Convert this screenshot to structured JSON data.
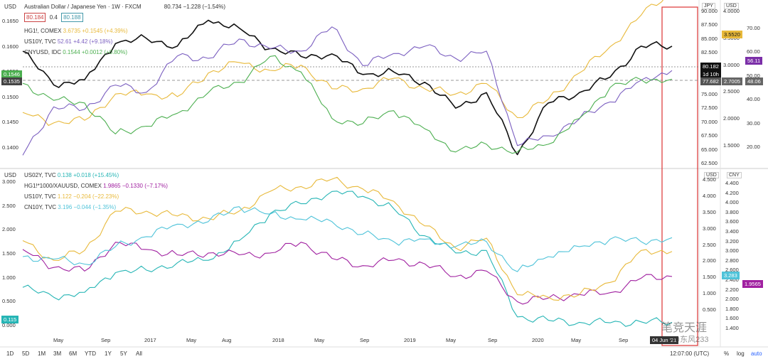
{
  "top_panel": {
    "currency_label": "USD",
    "title": "Australian Dollar / Japanese Yen · 1W · FXCM",
    "price": "80.734",
    "change": "−1.228 (−1.54%)",
    "bid": "80.184",
    "spread": "0.4",
    "ask": "80.188",
    "legend": [
      {
        "name": "HG1!, COMEX",
        "value": "3.6735",
        "change": "+0.1545 (+4.39%)",
        "color": "#e8b93a"
      },
      {
        "name": "US10Y, TVC",
        "value": "52.61",
        "change": "+4.42 (+9.18%)",
        "color": "#7b5fc0"
      },
      {
        "name": "CNYUSD, IDC",
        "value": "0.1544",
        "change": "+0.0012 (+0.80%)",
        "color": "#4caf50"
      }
    ],
    "axis_tags": {
      "jpy": "JPY",
      "usd": "USD"
    },
    "left_ticks": [
      "0.1650",
      "0.1600",
      "0.1550",
      "0.1500",
      "0.1450",
      "0.1400"
    ],
    "right_jpy_ticks": [
      "90.000",
      "87.500",
      "85.000",
      "82.500",
      "80.000",
      "77.500",
      "75.000",
      "72.500",
      "70.000",
      "67.500",
      "65.000",
      "62.500"
    ],
    "right_usd_ticks": [
      "4.0000",
      "3.5000",
      "3.0000",
      "2.5000",
      "2.0000",
      "1.5000"
    ],
    "right_usd2_ticks": [
      "70.00",
      "60.00",
      "50.00",
      "40.00",
      "30.00",
      "20.00"
    ],
    "price_labels": {
      "left_green": "0.1546",
      "left_dark": "0.1535",
      "aud_jpy": "80.182",
      "countdown": "1d 10h",
      "jpy_line": "77.682",
      "hg_copper": "3.5520",
      "hg_line": "2.7005",
      "us10y_purple": "56.11",
      "us10y_line": "48.06"
    }
  },
  "bottom_panel": {
    "currency_label": "USD",
    "legend": [
      {
        "name": "US02Y, TVC",
        "value": "0.138",
        "change": "+0.018 (+15.45%)",
        "color": "#26b5b5"
      },
      {
        "name": "HG1!*1000/XAUUSD, COMEX",
        "value": "1.9865",
        "change": "−0.1330 (−7.17%)",
        "color": "#a020a0"
      },
      {
        "name": "US10Y, TVC",
        "value": "1.122",
        "change": "−0.204 (−22.23%)",
        "color": "#e8b93a"
      },
      {
        "name": "CN10Y, TVC",
        "value": "3.196",
        "change": "−0.044 (−1.35%)",
        "color": "#4fc3d9"
      }
    ],
    "axis_tags": {
      "usd": "USD",
      "cny": "CNY"
    },
    "left_ticks": [
      "3.000",
      "2.500",
      "2.000",
      "1.500",
      "1.000",
      "0.500",
      "0.000"
    ],
    "right_usd_ticks": [
      "4.500",
      "4.000",
      "3.500",
      "3.000",
      "2.500",
      "2.000",
      "1.500",
      "1.000",
      "0.500"
    ],
    "right_cny_ticks": [
      "4.400",
      "4.200",
      "4.000",
      "3.800",
      "3.600",
      "3.400",
      "3.200",
      "3.000",
      "2.800",
      "2.600",
      "2.400",
      "2.200",
      "2.000",
      "1.800",
      "1.600",
      "1.400"
    ],
    "price_labels": {
      "left_teal": "0.115",
      "cn10y": "3.283",
      "ratio": "1.9565"
    }
  },
  "x_axis": {
    "labels": [
      "May",
      "Sep",
      "2017",
      "May",
      "Aug",
      "2018",
      "May",
      "Sep",
      "2019",
      "May",
      "Sep",
      "2020",
      "May",
      "Sep"
    ],
    "highlight_date": "04 Jun '21",
    "clock": "12:07:00 (UTC)",
    "pct": "%",
    "log": "log",
    "auto": "auto"
  },
  "toolbar": {
    "ranges": [
      "1D",
      "5D",
      "1M",
      "3M",
      "6M",
      "YTD",
      "1Y",
      "5Y",
      "All"
    ]
  },
  "watermark": {
    "main": "笔竞天涯",
    "sub": "@东风233"
  },
  "chart_data": [
    {
      "type": "line",
      "title": "Australian Dollar / Japanese Yen · 1W · FXCM (with HG1!, US10Y, CNYUSD overlays)",
      "x": [
        "2016-04",
        "2016-06",
        "2016-09",
        "2016-12",
        "2017-03",
        "2017-06",
        "2017-09",
        "2017-12",
        "2018-03",
        "2018-06",
        "2018-09",
        "2018-12",
        "2019-03",
        "2019-06",
        "2019-09",
        "2019-12",
        "2020-03",
        "2020-06",
        "2020-09",
        "2020-12",
        "2021-03",
        "2021-06"
      ],
      "series": [
        {
          "name": "AUDJPY",
          "color": "#111111",
          "axis": "jpy",
          "values": [
            83.5,
            77.0,
            78.0,
            85.0,
            86.0,
            84.5,
            89.5,
            88.0,
            84.0,
            82.5,
            83.0,
            79.0,
            79.5,
            77.5,
            72.5,
            75.5,
            63.5,
            73.5,
            75.5,
            78.5,
            84.5,
            84.5
          ]
        },
        {
          "name": "HG1!",
          "color": "#e8b93a",
          "axis": "usd",
          "values": [
            2.25,
            2.05,
            2.1,
            2.6,
            2.6,
            2.55,
            3.0,
            3.2,
            3.05,
            3.15,
            2.7,
            2.7,
            2.9,
            2.7,
            2.6,
            2.8,
            2.15,
            2.5,
            3.0,
            3.5,
            4.1,
            4.55
          ]
        },
        {
          "name": "US10Y",
          "color": "#7b5fc0",
          "axis": "usd2",
          "values": [
            18.0,
            38.0,
            37.0,
            47.0,
            44.0,
            59.0,
            58.0,
            66.0,
            62.0,
            61.0,
            71.0,
            55.0,
            60.0,
            63.0,
            58.0,
            61.0,
            22.0,
            26.0,
            33.0,
            40.0,
            49.0,
            53.0
          ]
        },
        {
          "name": "CNYUSD",
          "color": "#4caf50",
          "axis": "left",
          "values": [
            0.1538,
            0.1505,
            0.15,
            0.144,
            0.1455,
            0.148,
            0.152,
            0.154,
            0.159,
            0.156,
            0.147,
            0.146,
            0.1485,
            0.145,
            0.1405,
            0.142,
            0.1405,
            0.142,
            0.147,
            0.153,
            0.1545,
            0.1546
          ]
        }
      ],
      "left_axis_range": [
        0.138,
        0.168
      ],
      "jpy_axis_range": [
        61.5,
        91.5
      ],
      "usd_axis_range": [
        1.25,
        4.2
      ],
      "usd2_axis_range": [
        14,
        78
      ]
    },
    {
      "type": "line",
      "title": "US02Y, HG1!*1000/XAUUSD, US10Y, CN10Y",
      "x": [
        "2016-04",
        "2016-06",
        "2016-09",
        "2016-12",
        "2017-03",
        "2017-06",
        "2017-09",
        "2017-12",
        "2018-03",
        "2018-06",
        "2018-09",
        "2018-12",
        "2019-03",
        "2019-06",
        "2019-09",
        "2019-12",
        "2020-03",
        "2020-06",
        "2020-09",
        "2020-12",
        "2021-03",
        "2021-06"
      ],
      "series": [
        {
          "name": "US02Y",
          "color": "#26b5b5",
          "axis": "left",
          "values": [
            0.85,
            0.65,
            0.75,
            1.15,
            1.2,
            1.35,
            1.4,
            1.8,
            2.35,
            2.55,
            2.8,
            2.7,
            2.45,
            1.9,
            1.55,
            1.6,
            0.25,
            0.18,
            0.14,
            0.13,
            0.15,
            0.14
          ]
        },
        {
          "name": "HG1!*1000/XAUUSD",
          "color": "#a020a0",
          "axis": "usd",
          "values": [
            2.7,
            2.2,
            2.1,
            2.9,
            2.7,
            2.55,
            2.6,
            2.55,
            2.6,
            2.9,
            2.45,
            2.25,
            2.4,
            2.3,
            1.95,
            2.1,
            1.25,
            1.35,
            1.45,
            1.5,
            1.9,
            1.95
          ]
        },
        {
          "name": "US10Y",
          "color": "#e8b93a",
          "axis": "left",
          "values": [
            1.8,
            1.4,
            1.6,
            2.4,
            2.4,
            2.3,
            2.25,
            2.4,
            2.8,
            2.9,
            3.05,
            2.85,
            2.6,
            2.1,
            1.65,
            1.85,
            0.7,
            0.65,
            0.7,
            0.95,
            1.6,
            1.58
          ]
        },
        {
          "name": "CN10Y",
          "color": "#4fc3d9",
          "axis": "cny",
          "values": [
            2.9,
            2.85,
            2.75,
            3.1,
            3.3,
            3.55,
            3.6,
            3.9,
            3.75,
            3.65,
            3.6,
            3.35,
            3.2,
            3.25,
            3.1,
            3.2,
            2.6,
            2.9,
            3.1,
            3.25,
            3.2,
            3.28
          ]
        }
      ],
      "left_axis_range": [
        -0.1,
        3.05
      ],
      "usd_axis_range": [
        0.35,
        4.65
      ],
      "cny_axis_range": [
        1.35,
        4.45
      ]
    }
  ]
}
